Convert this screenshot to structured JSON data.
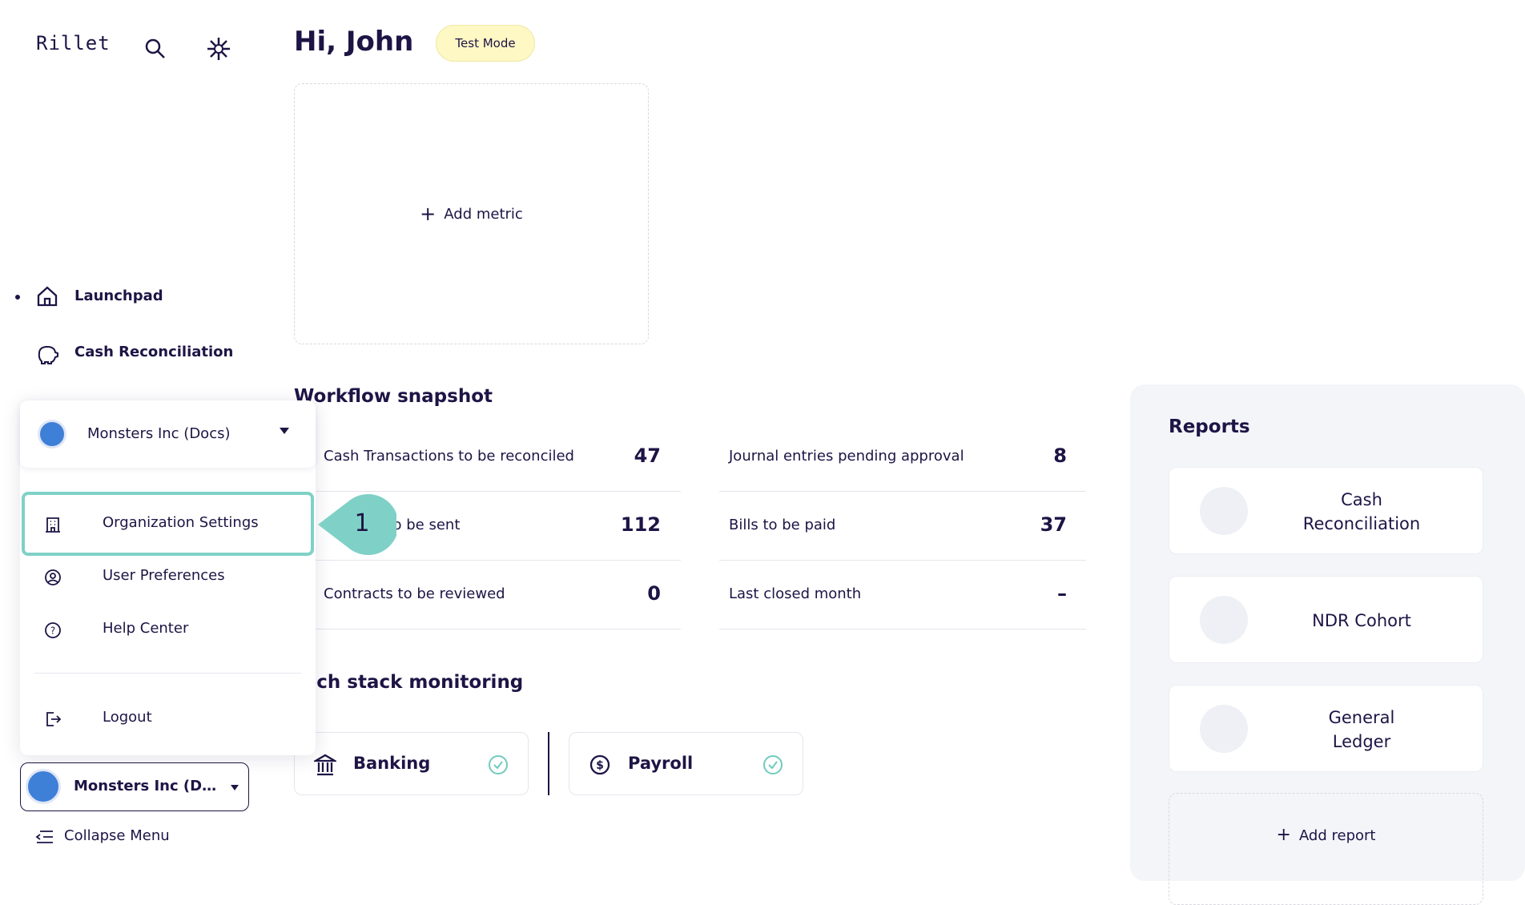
{
  "sidebar": {
    "logo": "Rillet",
    "nav": [
      "Launchpad",
      "Cash Reconciliation"
    ],
    "org_button": "Monsters Inc (Docs)",
    "collapse": "Collapse Menu"
  },
  "header": {
    "greeting": "Hi, John",
    "badge": "Test Mode"
  },
  "metrics": {
    "add": "Add metric"
  },
  "workflow": {
    "title": "Workflow snapshot",
    "left": [
      [
        "Cash Transactions to be reconciled",
        47
      ],
      [
        "Invoices to be sent",
        112
      ],
      [
        "Contracts to be reviewed",
        0
      ]
    ],
    "right": [
      [
        "Journal entries pending approval",
        8
      ],
      [
        "Bills to be paid",
        37
      ],
      [
        "Last closed month",
        "–"
      ]
    ]
  },
  "tech_stack": {
    "title": "Tech stack monitoring",
    "items": [
      "Banking",
      "Payroll"
    ]
  },
  "reports": {
    "title": "Reports",
    "items": [
      "Cash Reconciliation",
      "NDR Cohort",
      "General Ledger"
    ],
    "add": "Add report"
  },
  "dropdown": {
    "org": "Monsters Inc (Docs)",
    "items": [
      "Organization Settings",
      "User Preferences",
      "Help Center"
    ],
    "logout": "Logout"
  },
  "callout": {
    "step": "1"
  }
}
